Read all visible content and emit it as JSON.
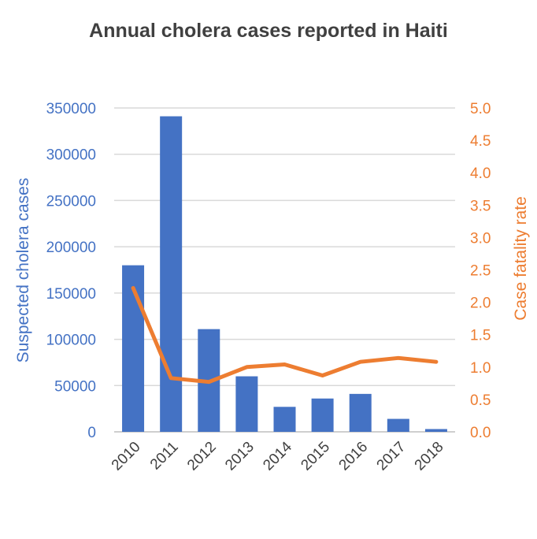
{
  "chart_data": {
    "type": "bar",
    "title": "Annual  cholera  cases reported  in  Haiti",
    "categories": [
      "2010",
      "2011",
      "2012",
      "2013",
      "2014",
      "2015",
      "2016",
      "2017",
      "2018"
    ],
    "series": [
      {
        "name": "Suspected cholera cases",
        "type": "bar",
        "axis": "left",
        "color": "#4472c4",
        "values": [
          180000,
          341000,
          111000,
          60000,
          27000,
          36000,
          41000,
          14000,
          3000
        ]
      },
      {
        "name": "Case fatality rate",
        "type": "line",
        "axis": "right",
        "color": "#ed7d31",
        "values": [
          2.22,
          0.83,
          0.77,
          1.0,
          1.04,
          0.87,
          1.08,
          1.14,
          1.08
        ]
      }
    ],
    "ylabel": "Suspected cholera  cases",
    "y2label": "Case fatality rate",
    "ylim": [
      0,
      350000
    ],
    "y2lim": [
      0,
      5.0
    ],
    "yticks": [
      "0",
      "50000",
      "100000",
      "150000",
      "200000",
      "250000",
      "300000",
      "350000"
    ],
    "y2ticks": [
      "0.0",
      "0.5",
      "1.0",
      "1.5",
      "2.0",
      "2.5",
      "3.0",
      "3.5",
      "4.0",
      "4.5",
      "5.0"
    ],
    "grid": true,
    "legend": "none"
  }
}
